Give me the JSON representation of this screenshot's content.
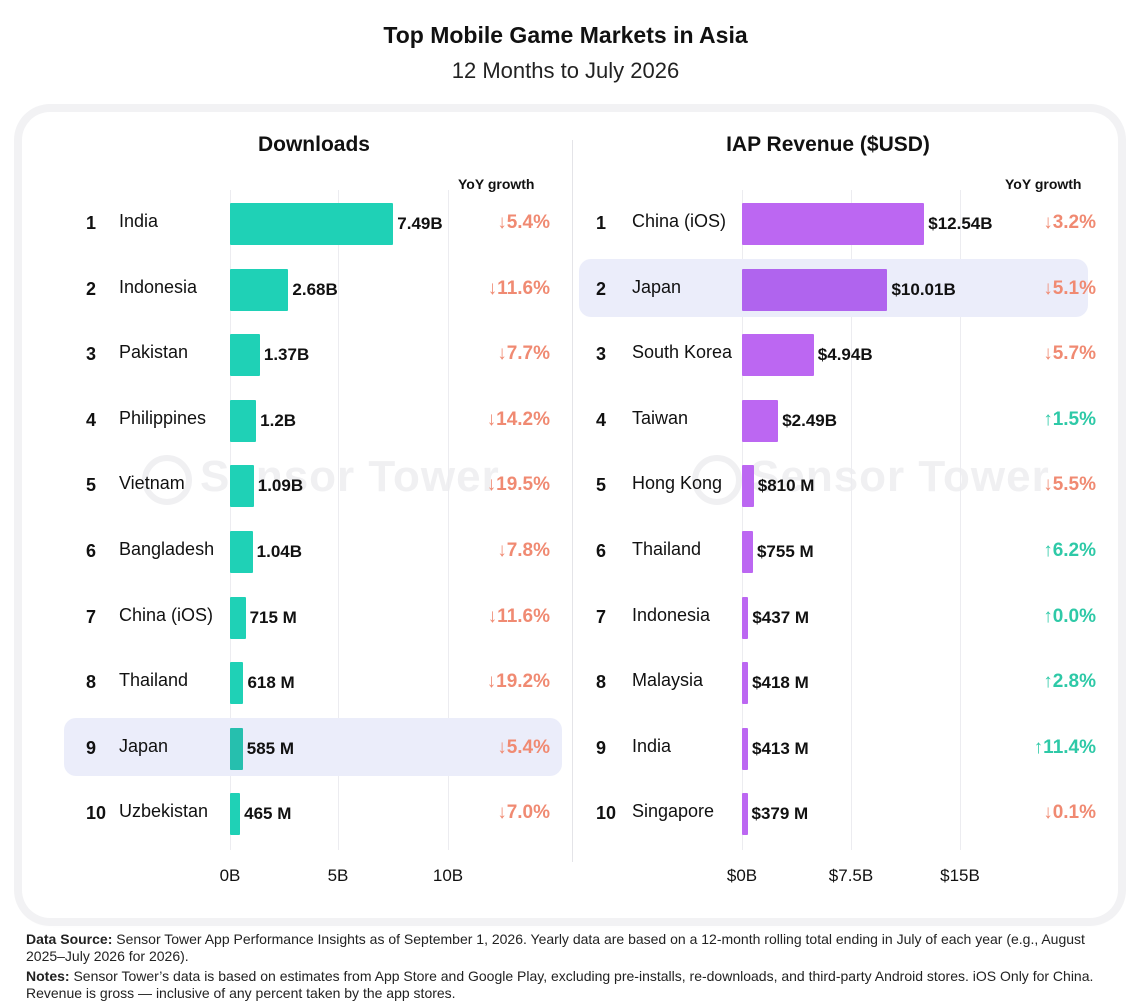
{
  "title": "Top Mobile Game Markets in Asia",
  "subtitle": "12 Months to July 2026",
  "watermark": "Sensor Tower",
  "colors": {
    "downloads_bar": "#1fd1b6",
    "downloads_bar_highlight": "#26bfae",
    "revenue_bar": "#bc67f2",
    "revenue_bar_highlight": "#b064ee",
    "growth_down": "#f08a72",
    "growth_up": "#2ec9a7",
    "highlight_row": "#ebedfa"
  },
  "yoy_header": "YoY  growth",
  "chart_data": [
    {
      "type": "bar",
      "orientation": "horizontal",
      "title": "Downloads",
      "xlim": [
        0,
        10
      ],
      "x_unit": "billions",
      "ticks": [
        "0B",
        "5B",
        "10B"
      ],
      "highlight_rank": 9,
      "rows": [
        {
          "rank": "1",
          "name": "India",
          "value": 7.49,
          "label": "7.49B",
          "yoy": "↓5.4%",
          "dir": "down"
        },
        {
          "rank": "2",
          "name": "Indonesia",
          "value": 2.68,
          "label": "2.68B",
          "yoy": "↓11.6%",
          "dir": "down"
        },
        {
          "rank": "3",
          "name": "Pakistan",
          "value": 1.37,
          "label": "1.37B",
          "yoy": "↓7.7%",
          "dir": "down"
        },
        {
          "rank": "4",
          "name": "Philippines",
          "value": 1.2,
          "label": "1.2B",
          "yoy": "↓14.2%",
          "dir": "down"
        },
        {
          "rank": "5",
          "name": "Vietnam",
          "value": 1.09,
          "label": "1.09B",
          "yoy": "↓19.5%",
          "dir": "down"
        },
        {
          "rank": "6",
          "name": "Bangladesh",
          "value": 1.04,
          "label": "1.04B",
          "yoy": "↓7.8%",
          "dir": "down"
        },
        {
          "rank": "7",
          "name": "China (iOS)",
          "value": 0.715,
          "label": "715 M",
          "yoy": "↓11.6%",
          "dir": "down"
        },
        {
          "rank": "8",
          "name": "Thailand",
          "value": 0.618,
          "label": "618 M",
          "yoy": "↓19.2%",
          "dir": "down"
        },
        {
          "rank": "9",
          "name": "Japan",
          "value": 0.585,
          "label": "585 M",
          "yoy": "↓5.4%",
          "dir": "down"
        },
        {
          "rank": "10",
          "name": "Uzbekistan",
          "value": 0.465,
          "label": "465 M",
          "yoy": "↓7.0%",
          "dir": "down"
        }
      ]
    },
    {
      "type": "bar",
      "orientation": "horizontal",
      "title": "IAP Revenue ($USD)",
      "xlim": [
        0,
        15
      ],
      "x_unit": "billions USD",
      "ticks": [
        "$0B",
        "$7.5B",
        "$15B"
      ],
      "highlight_rank": 2,
      "rows": [
        {
          "rank": "1",
          "name": "China (iOS)",
          "value": 12.54,
          "label": "$12.54B",
          "yoy": "↓3.2%",
          "dir": "down"
        },
        {
          "rank": "2",
          "name": "Japan",
          "value": 10.01,
          "label": "$10.01B",
          "yoy": "↓5.1%",
          "dir": "down"
        },
        {
          "rank": "3",
          "name": "South Korea",
          "value": 4.94,
          "label": "$4.94B",
          "yoy": "↓5.7%",
          "dir": "down"
        },
        {
          "rank": "4",
          "name": "Taiwan",
          "value": 2.49,
          "label": "$2.49B",
          "yoy": "↑1.5%",
          "dir": "up"
        },
        {
          "rank": "5",
          "name": "Hong Kong",
          "value": 0.81,
          "label": "$810 M",
          "yoy": "↓5.5%",
          "dir": "down"
        },
        {
          "rank": "6",
          "name": "Thailand",
          "value": 0.755,
          "label": "$755 M",
          "yoy": "↑6.2%",
          "dir": "up"
        },
        {
          "rank": "7",
          "name": "Indonesia",
          "value": 0.437,
          "label": "$437 M",
          "yoy": "↑0.0%",
          "dir": "up"
        },
        {
          "rank": "8",
          "name": "Malaysia",
          "value": 0.418,
          "label": "$418 M",
          "yoy": "↑2.8%",
          "dir": "up"
        },
        {
          "rank": "9",
          "name": "India",
          "value": 0.413,
          "label": "$413 M",
          "yoy": "↑11.4%",
          "dir": "up"
        },
        {
          "rank": "10",
          "name": "Singapore",
          "value": 0.379,
          "label": "$379 M",
          "yoy": "↓0.1%",
          "dir": "down"
        }
      ]
    }
  ],
  "footer": {
    "source_label": "Data Source:",
    "source_text": " Sensor Tower App Performance Insights as of September 1, 2026. Yearly data are based on a 12-month rolling total ending in July of each year (e.g., August 2025–July 2026 for 2026).",
    "notes_label": "Notes:",
    "notes_text": " Sensor Tower’s data is based on estimates from App Store and Google Play, excluding pre-installs, re-downloads, and third-party Android stores. iOS Only for China.  Revenue is gross — inclusive of any percent taken by the app stores."
  }
}
